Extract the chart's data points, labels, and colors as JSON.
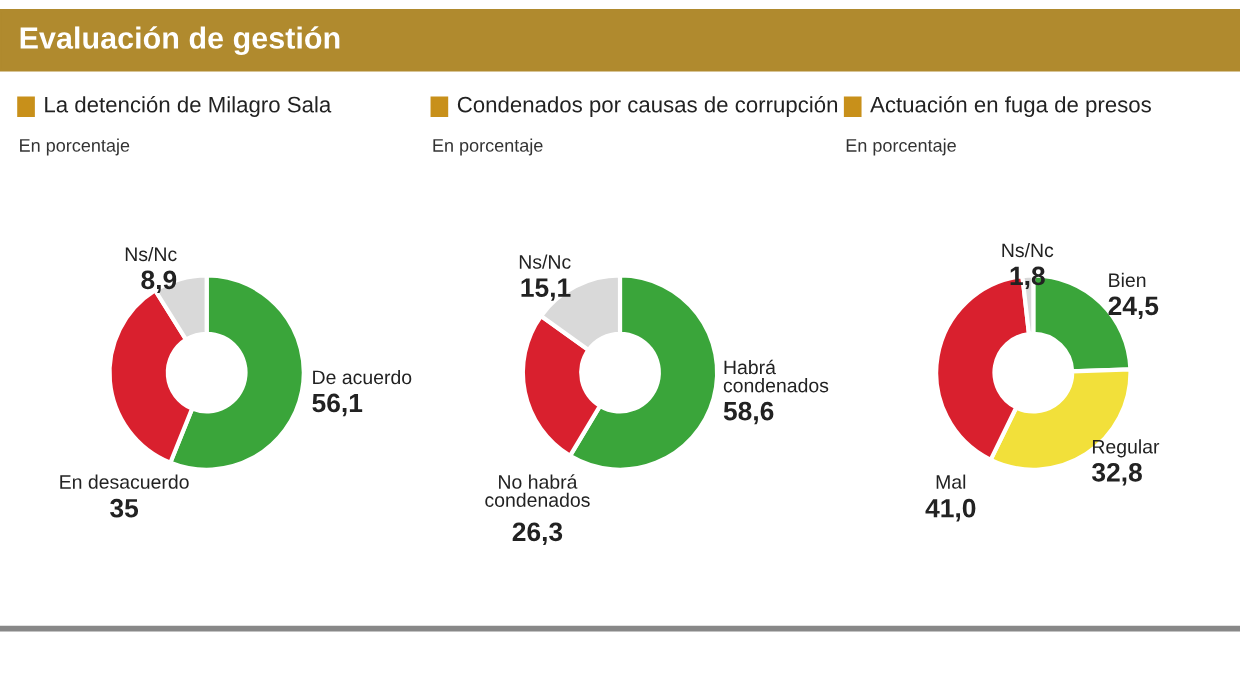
{
  "chart_data": [
    {
      "type": "donut",
      "title": "La detención de Milagro Sala",
      "subtitle": "En porcentaje",
      "annotations": [
        "Evaluación de gestión"
      ],
      "categories": [
        "De acuerdo",
        "En desacuerdo",
        "Ns/Nc"
      ],
      "values": [
        56.1,
        35,
        8.9
      ],
      "value_labels": [
        "56,1",
        "35",
        "8,9"
      ],
      "colors": [
        "#3aa53a",
        "#d9202e",
        "#d9d9d9"
      ]
    },
    {
      "type": "donut",
      "title": "Condenados por causas de corrupción",
      "subtitle": "En porcentaje",
      "categories": [
        "Habrá\ncondenados",
        "No habrá\ncondenados",
        "Ns/Nc"
      ],
      "values": [
        58.6,
        26.3,
        15.1
      ],
      "value_labels": [
        "58,6",
        "26,3",
        "15,1"
      ],
      "colors": [
        "#3aa53a",
        "#d9202e",
        "#d9d9d9"
      ]
    },
    {
      "type": "donut",
      "title": "Actuación en fuga de presos",
      "subtitle": "En porcentaje",
      "categories": [
        "Bien",
        "Regular",
        "Mal",
        "Ns/Nc"
      ],
      "values": [
        24.5,
        32.8,
        41.0,
        1.8
      ],
      "value_labels": [
        "24,5",
        "32,8",
        "41,0",
        "1,8"
      ],
      "colors": [
        "#3aa53a",
        "#f2e03a",
        "#d9202e",
        "#d9d9d9"
      ]
    }
  ]
}
